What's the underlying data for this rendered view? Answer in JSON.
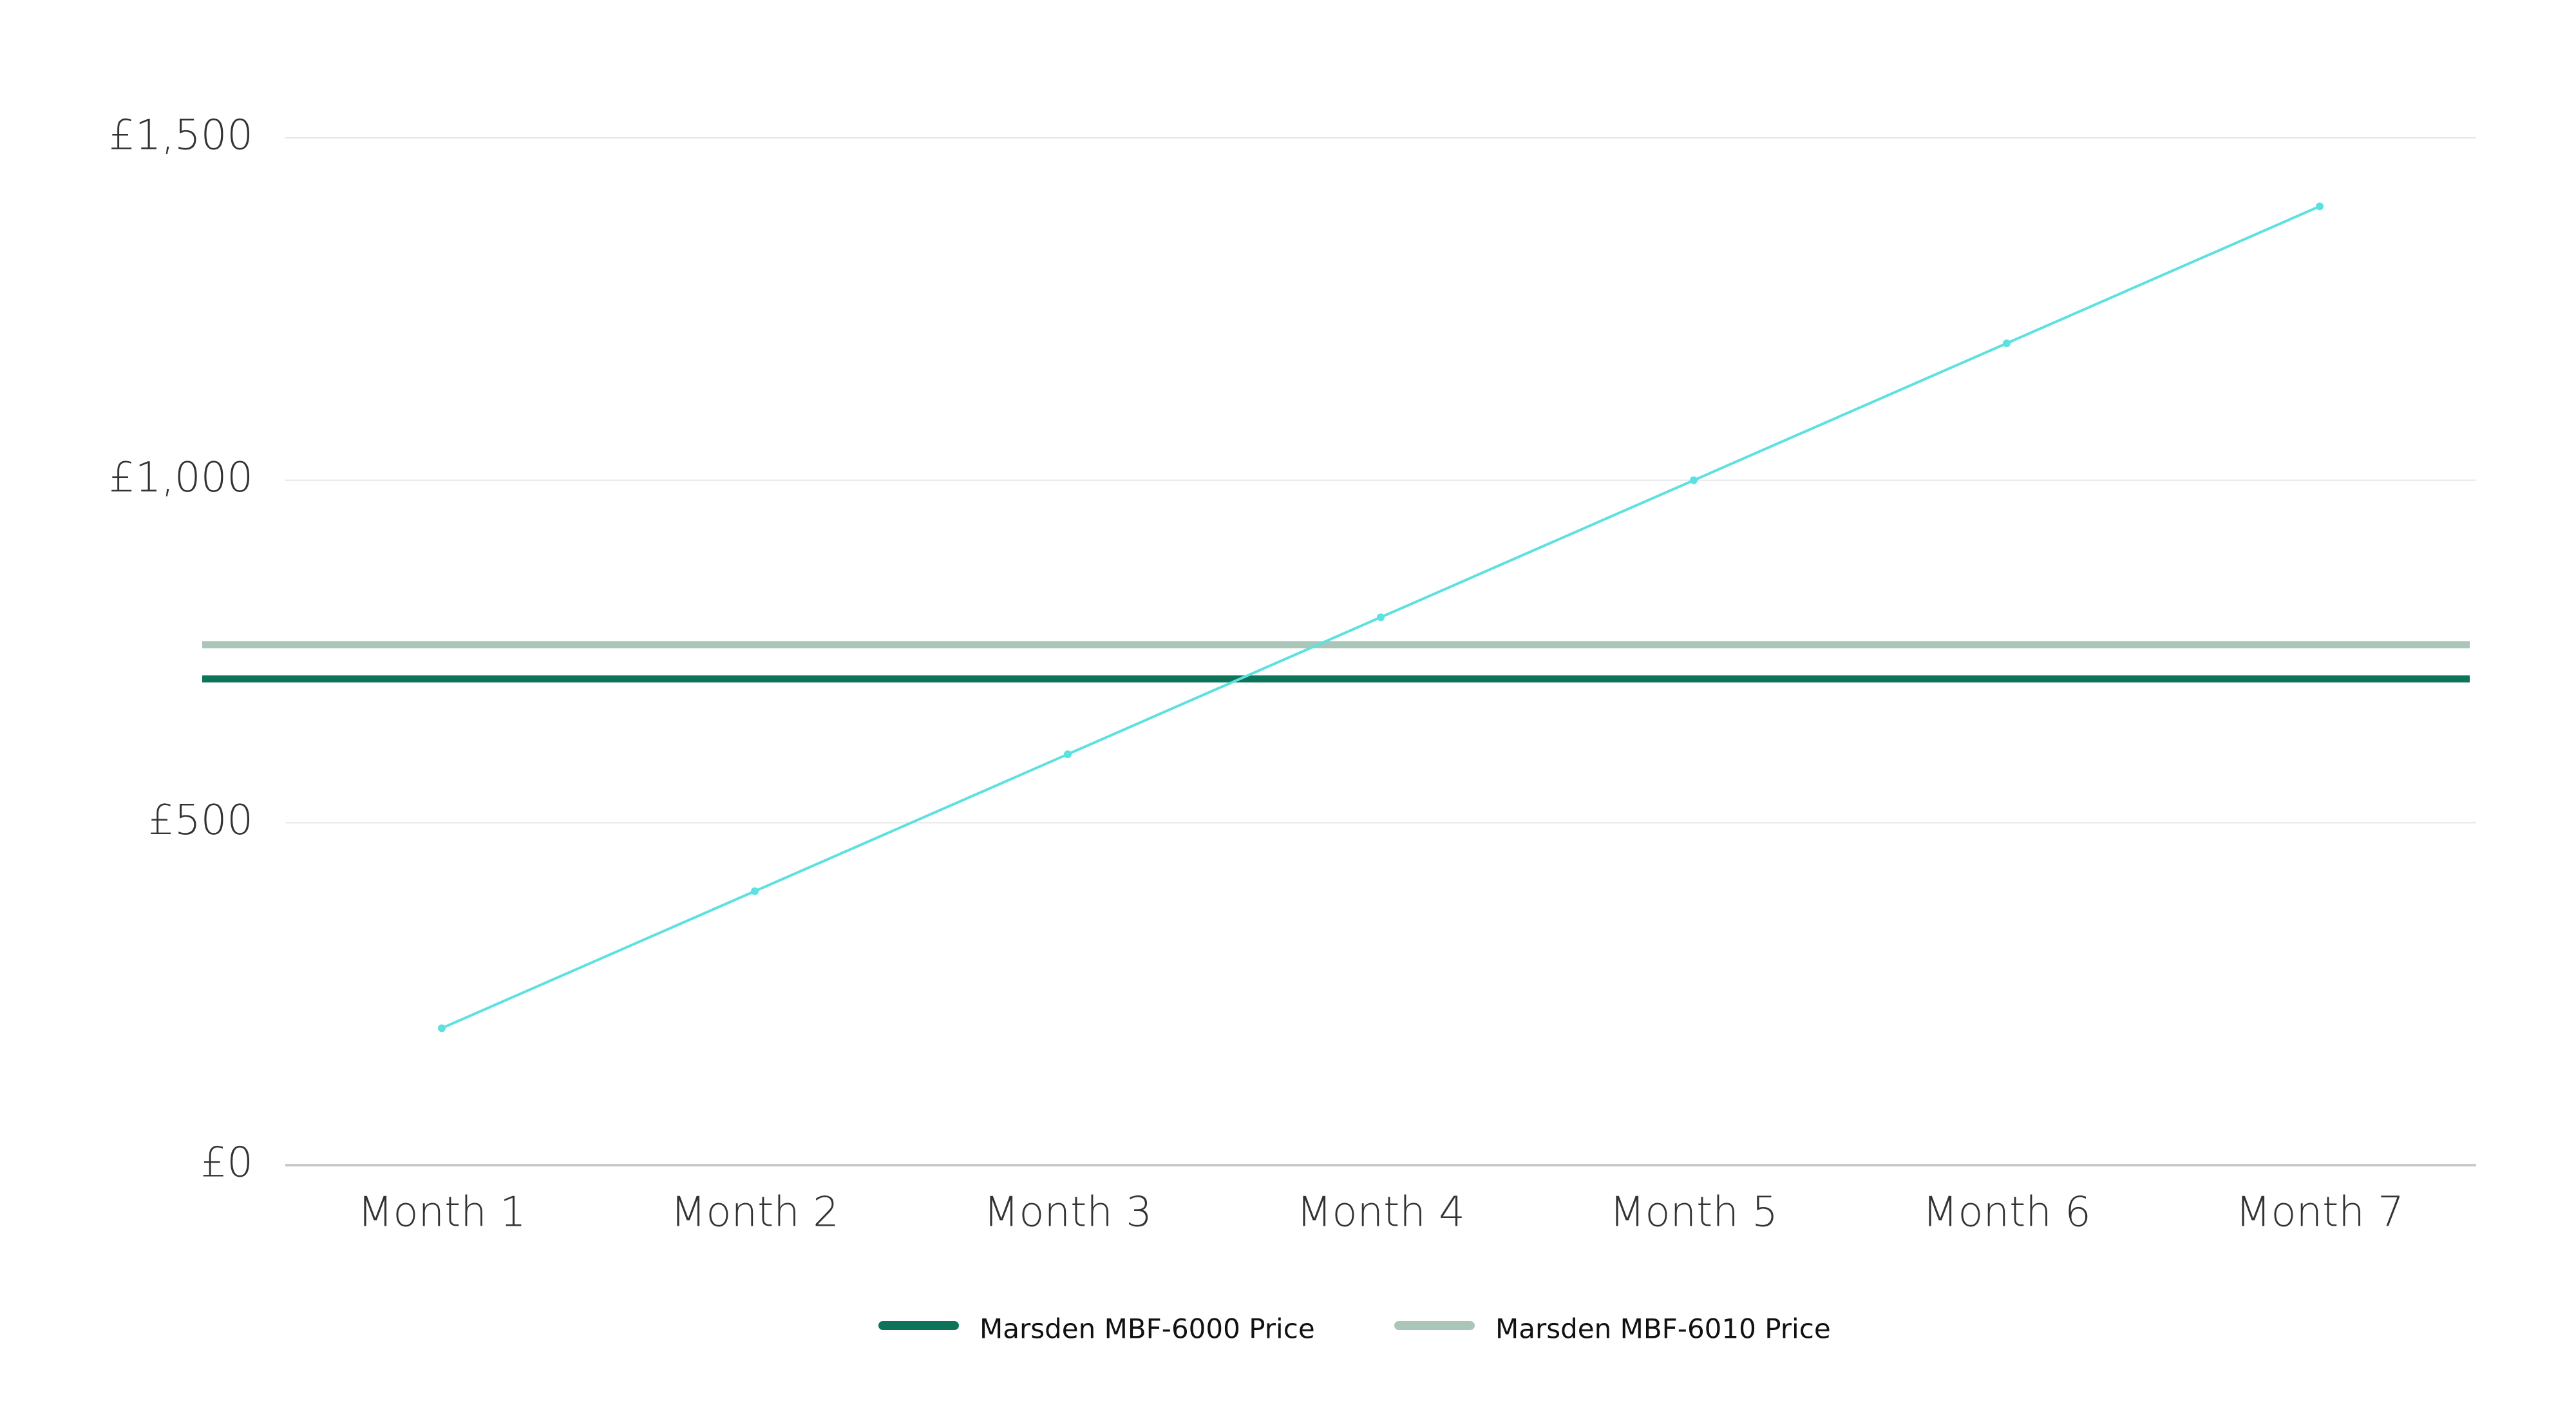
{
  "chart_data": {
    "type": "line",
    "categories": [
      "Month 1",
      "Month 2",
      "Month 3",
      "Month 4",
      "Month 5",
      "Month 6",
      "Month 7"
    ],
    "series": [
      {
        "color": "#5ce1e0",
        "values": [
          200,
          400,
          600,
          800,
          1000,
          1200,
          1400
        ]
      }
    ],
    "reference_lines": [
      {
        "name": "Marsden MBF-6000 Price",
        "color": "#0d7459",
        "value": 710
      },
      {
        "name": "Marsden MBF-6010 Price",
        "color": "#a9c6b9",
        "value": 760
      }
    ],
    "ylim": [
      0,
      1500
    ],
    "yticks": [
      {
        "value": 0,
        "label": "£0"
      },
      {
        "value": 500,
        "label": "£500"
      },
      {
        "value": 1000,
        "label": "£1,000"
      },
      {
        "value": 1500,
        "label": "£1,500"
      }
    ],
    "grid": true,
    "legend": "bottom"
  }
}
